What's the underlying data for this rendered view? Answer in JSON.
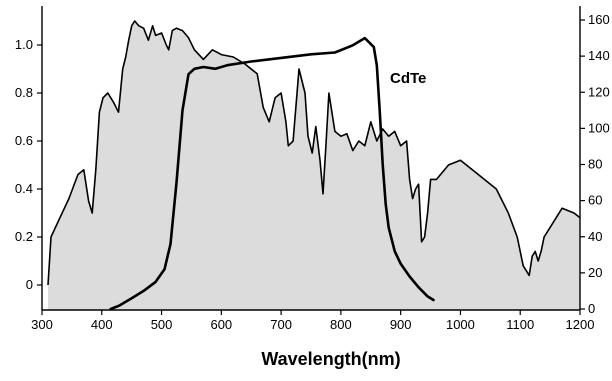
{
  "chart_data": {
    "type": "area",
    "xlabel": "Wavelength(nm)",
    "ylabel": "",
    "xlim": [
      300,
      1200
    ],
    "ylim_left": [
      0,
      1.1
    ],
    "ylim_right": [
      0,
      165
    ],
    "x_ticks": [
      300,
      400,
      500,
      600,
      700,
      800,
      900,
      1000,
      1100,
      1200
    ],
    "y_left_ticks": [
      0,
      0.2,
      0.4,
      0.6,
      0.8,
      1.0
    ],
    "y_left_tick_labels": [
      "0",
      "0.2",
      "0.4",
      "0.6",
      "0.8",
      "1.0"
    ],
    "y_right_ticks": [
      0,
      20,
      40,
      60,
      80,
      100,
      120,
      140,
      160
    ],
    "grid": false,
    "annotations": [
      {
        "text": "CdTe",
        "series": "spectral response"
      }
    ],
    "series": [
      {
        "kind": "area",
        "axis": "left",
        "fill": "#dcdcdc",
        "stroke": "#000000",
        "x": [
          310,
          315,
          330,
          345,
          360,
          370,
          378,
          384,
          390,
          396,
          402,
          410,
          420,
          428,
          435,
          440,
          445,
          450,
          455,
          462,
          470,
          478,
          485,
          490,
          500,
          508,
          512,
          518,
          525,
          535,
          545,
          555,
          570,
          585,
          600,
          620,
          640,
          660,
          670,
          680,
          690,
          700,
          708,
          712,
          720,
          730,
          740,
          745,
          752,
          758,
          765,
          770,
          775,
          780,
          790,
          800,
          810,
          820,
          830,
          840,
          850,
          860,
          870,
          880,
          890,
          900,
          910,
          915,
          920,
          925,
          930,
          935,
          940,
          945,
          950,
          960,
          980,
          1000,
          1010,
          1030,
          1060,
          1080,
          1095,
          1105,
          1115,
          1120,
          1125,
          1130,
          1135,
          1140,
          1150,
          1160,
          1170,
          1180,
          1190,
          1200
        ],
        "y": [
          0,
          0.2,
          0.28,
          0.36,
          0.46,
          0.48,
          0.35,
          0.3,
          0.48,
          0.72,
          0.78,
          0.8,
          0.76,
          0.72,
          0.9,
          0.95,
          1.02,
          1.08,
          1.1,
          1.08,
          1.07,
          1.02,
          1.08,
          1.04,
          1.05,
          1.0,
          0.98,
          1.06,
          1.07,
          1.06,
          1.03,
          0.98,
          0.94,
          0.98,
          0.96,
          0.95,
          0.92,
          0.88,
          0.74,
          0.68,
          0.78,
          0.8,
          0.68,
          0.58,
          0.6,
          0.9,
          0.8,
          0.62,
          0.55,
          0.66,
          0.52,
          0.38,
          0.58,
          0.8,
          0.64,
          0.62,
          0.63,
          0.56,
          0.6,
          0.58,
          0.68,
          0.6,
          0.65,
          0.62,
          0.64,
          0.58,
          0.6,
          0.44,
          0.36,
          0.4,
          0.42,
          0.18,
          0.2,
          0.3,
          0.44,
          0.44,
          0.5,
          0.52,
          0.5,
          0.46,
          0.4,
          0.3,
          0.2,
          0.08,
          0.04,
          0.12,
          0.14,
          0.1,
          0.14,
          0.2,
          0.24,
          0.28,
          0.32,
          0.31,
          0.3,
          0.28
        ]
      },
      {
        "kind": "line",
        "axis": "right",
        "name": "",
        "stroke": "#000000",
        "x": [
          415,
          430,
          450,
          470,
          490,
          505,
          515,
          525,
          535,
          545,
          555,
          570,
          590,
          610,
          650,
          700,
          750,
          790,
          820,
          840,
          855,
          860,
          865,
          870,
          875,
          880,
          890,
          900,
          915,
          930,
          945,
          955
        ],
        "y": [
          0,
          2,
          6,
          10,
          15,
          22,
          36,
          70,
          110,
          130,
          133,
          134,
          133,
          135,
          137,
          139,
          141,
          142,
          146,
          150,
          145,
          135,
          110,
          80,
          58,
          45,
          32,
          25,
          18,
          12,
          7,
          5
        ]
      }
    ]
  }
}
